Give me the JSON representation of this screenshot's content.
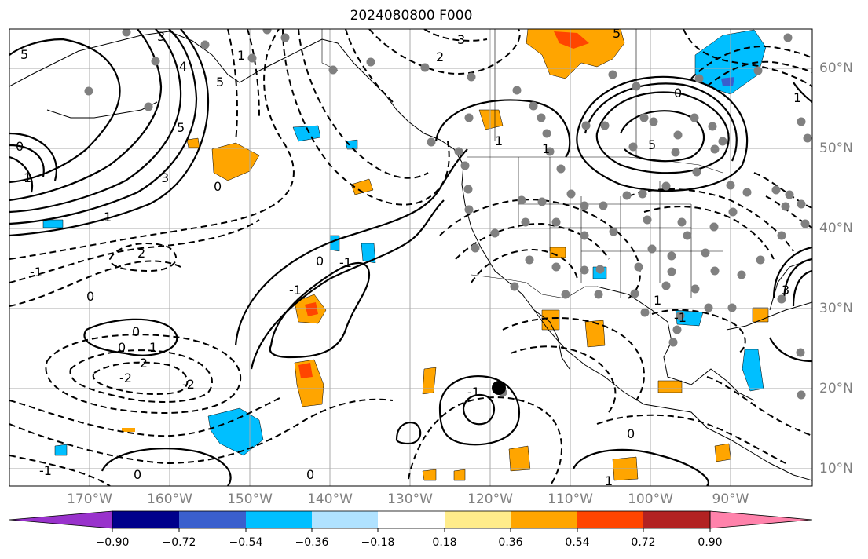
{
  "title": "2024080800 F000",
  "lat_labels": [
    "60°N",
    "50°N",
    "40°N",
    "30°N",
    "20°N",
    "10°N"
  ],
  "lon_labels": [
    "170°W",
    "160°W",
    "150°W",
    "140°W",
    "130°W",
    "120°W",
    "110°W",
    "100°W",
    "90°W"
  ],
  "colorbar": {
    "ticks": [
      "−0.90",
      "−0.72",
      "−0.54",
      "−0.36",
      "−0.18",
      "0.18",
      "0.36",
      "0.54",
      "0.72",
      "0.90"
    ],
    "colors": [
      "#9932cc",
      "#00008b",
      "#3a5fcd",
      "#00bfff",
      "#b0e2ff",
      "#ffffff",
      "#ffec8b",
      "#ffa500",
      "#ff4500",
      "#b22222",
      "#ff82ab"
    ]
  },
  "contour_labels": [
    "5",
    "3",
    "4",
    "5",
    "1",
    "3",
    "5",
    "1",
    "0",
    "3",
    "2",
    "5",
    "0",
    "1",
    "0",
    "1",
    "1",
    "2",
    "1",
    "-1",
    "0",
    "-1",
    "0",
    "0",
    "-2",
    "-2",
    "-2",
    "-1",
    "1",
    "0",
    "-1",
    "0",
    "0",
    "-1",
    "1",
    "0",
    "-1",
    "1",
    "3",
    "5"
  ]
}
